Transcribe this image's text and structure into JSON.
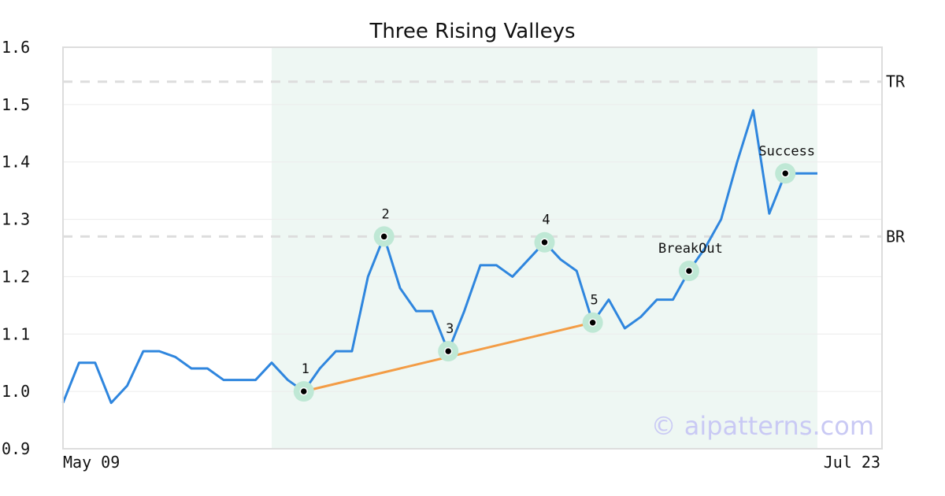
{
  "chart_data": {
    "type": "line",
    "title": "Three Rising Valleys",
    "x_start_label": "May 09",
    "x_end_label": "Jul 23",
    "ylim": [
      0.9,
      1.6
    ],
    "yticks": [
      "0.9",
      "1.0",
      "1.1",
      "1.2",
      "1.3",
      "1.4",
      "1.5",
      "1.6"
    ],
    "grid": true,
    "values": [
      0.98,
      1.05,
      1.05,
      0.98,
      1.01,
      1.07,
      1.07,
      1.06,
      1.04,
      1.04,
      1.02,
      1.02,
      1.02,
      1.05,
      1.02,
      1.0,
      1.04,
      1.07,
      1.07,
      1.2,
      1.27,
      1.18,
      1.14,
      1.14,
      1.07,
      1.14,
      1.22,
      1.22,
      1.2,
      1.23,
      1.26,
      1.23,
      1.21,
      1.12,
      1.16,
      1.11,
      1.13,
      1.16,
      1.16,
      1.21,
      1.25,
      1.3,
      1.4,
      1.49,
      1.31,
      1.38,
      1.38,
      1.38
    ],
    "pattern_window": {
      "start_index": 13,
      "end_index": 47
    },
    "levels": [
      {
        "label": "TR",
        "value": 1.54
      },
      {
        "label": "BR",
        "value": 1.27
      }
    ],
    "points": [
      {
        "label": "1",
        "index": 15,
        "value": 1.0
      },
      {
        "label": "2",
        "index": 20,
        "value": 1.27
      },
      {
        "label": "3",
        "index": 24,
        "value": 1.07
      },
      {
        "label": "4",
        "index": 30,
        "value": 1.26
      },
      {
        "label": "5",
        "index": 33,
        "value": 1.12
      },
      {
        "label": "BreakOut",
        "index": 39,
        "value": 1.21
      },
      {
        "label": "Success",
        "index": 45,
        "value": 1.38
      }
    ],
    "trendline": {
      "from_index": 15,
      "from_value": 1.0,
      "to_index": 33,
      "to_value": 1.12
    },
    "colors": {
      "price": "#2f86de",
      "trend": "#f39c45",
      "window": "#eef7f3",
      "marker_halo": "#bfe8d5",
      "level": "#dddddd",
      "grid": "#ececec",
      "frame": "#dddddd"
    }
  },
  "watermark": "© aipatterns.com"
}
